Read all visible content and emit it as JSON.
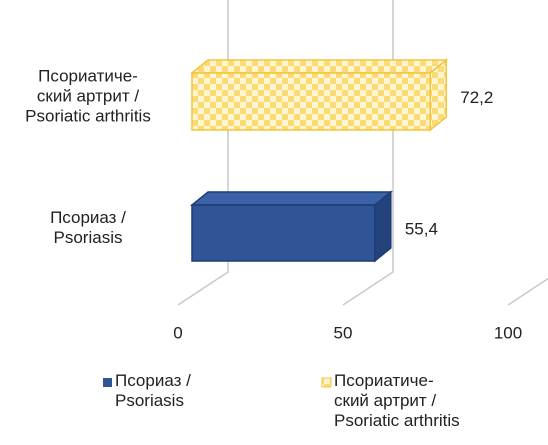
{
  "chart_data": {
    "type": "bar3d_horizontal",
    "categories": [
      "Псориаз /\nPsoriasis",
      "Псориатиче-\nский артрит /\nPsoriatic arthritis"
    ],
    "values": [
      55.4,
      72.2
    ],
    "value_labels": [
      "55,4",
      "72,2"
    ],
    "colors": [
      "#2f5597",
      "#f5c33b"
    ],
    "xlim": [
      0,
      100
    ],
    "xticks": [
      0,
      50,
      100
    ],
    "grid": true
  }
}
